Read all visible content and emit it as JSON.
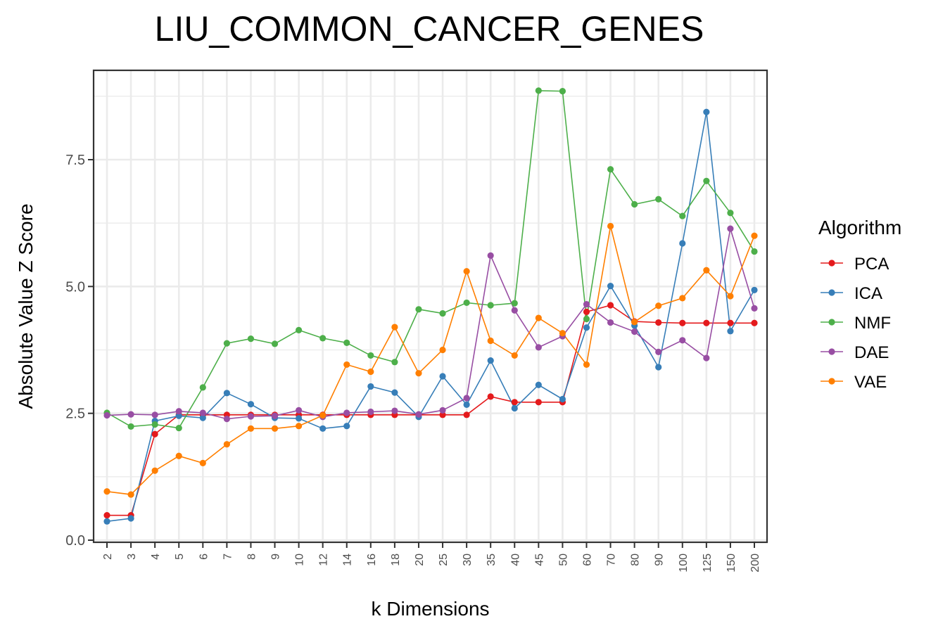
{
  "chart_data": {
    "type": "line",
    "title": "LIU_COMMON_CANCER_GENES",
    "xlabel": "k Dimensions",
    "ylabel": "Absolute Value Z Score",
    "categories": [
      "2",
      "3",
      "4",
      "5",
      "6",
      "7",
      "8",
      "9",
      "10",
      "12",
      "14",
      "16",
      "18",
      "20",
      "25",
      "30",
      "35",
      "40",
      "45",
      "50",
      "60",
      "70",
      "80",
      "90",
      "100",
      "125",
      "150",
      "200"
    ],
    "yticks": [
      "0.0",
      "2.5",
      "5.0",
      "7.5"
    ],
    "ylim": [
      0,
      9.2
    ],
    "grid": true,
    "legend_title": "Algorithm",
    "legend_position": "right",
    "series": [
      {
        "name": "PCA",
        "color": "#e41a1c",
        "values": [
          0.49,
          0.49,
          2.09,
          2.47,
          2.47,
          2.47,
          2.47,
          2.47,
          2.47,
          2.47,
          2.47,
          2.47,
          2.47,
          2.47,
          2.47,
          2.47,
          2.83,
          2.72,
          2.72,
          2.72,
          4.5,
          4.63,
          4.31,
          4.29,
          4.28,
          4.28,
          4.28,
          4.28
        ]
      },
      {
        "name": "ICA",
        "color": "#377eb8",
        "values": [
          0.37,
          0.43,
          2.35,
          2.45,
          2.41,
          2.9,
          2.68,
          2.41,
          2.4,
          2.2,
          2.25,
          3.03,
          2.91,
          2.43,
          3.23,
          2.67,
          3.54,
          2.6,
          3.06,
          2.78,
          4.19,
          5.01,
          4.23,
          3.41,
          5.85,
          8.44,
          4.12,
          4.93
        ]
      },
      {
        "name": "NMF",
        "color": "#4daf4a",
        "values": [
          2.51,
          2.24,
          2.28,
          2.21,
          3.01,
          3.88,
          3.97,
          3.87,
          4.14,
          3.98,
          3.89,
          3.64,
          3.51,
          4.55,
          4.47,
          4.68,
          4.63,
          4.67,
          8.86,
          8.85,
          4.36,
          7.31,
          6.62,
          6.72,
          6.39,
          7.08,
          6.45,
          5.69
        ]
      },
      {
        "name": "DAE",
        "color": "#984ea3",
        "values": [
          2.46,
          2.48,
          2.47,
          2.54,
          2.51,
          2.39,
          2.44,
          2.45,
          2.56,
          2.43,
          2.51,
          2.53,
          2.55,
          2.48,
          2.56,
          2.8,
          5.61,
          4.53,
          3.8,
          4.02,
          4.65,
          4.29,
          4.11,
          3.71,
          3.94,
          3.59,
          6.14,
          4.57
        ]
      },
      {
        "name": "VAE",
        "color": "#ff7f00",
        "values": [
          0.96,
          0.9,
          1.37,
          1.66,
          1.52,
          1.89,
          2.2,
          2.2,
          2.25,
          2.46,
          3.46,
          3.32,
          4.2,
          3.29,
          3.75,
          5.3,
          3.93,
          3.64,
          4.38,
          4.08,
          3.46,
          6.19,
          4.3,
          4.62,
          4.77,
          5.32,
          4.81,
          6.0
        ]
      }
    ]
  }
}
